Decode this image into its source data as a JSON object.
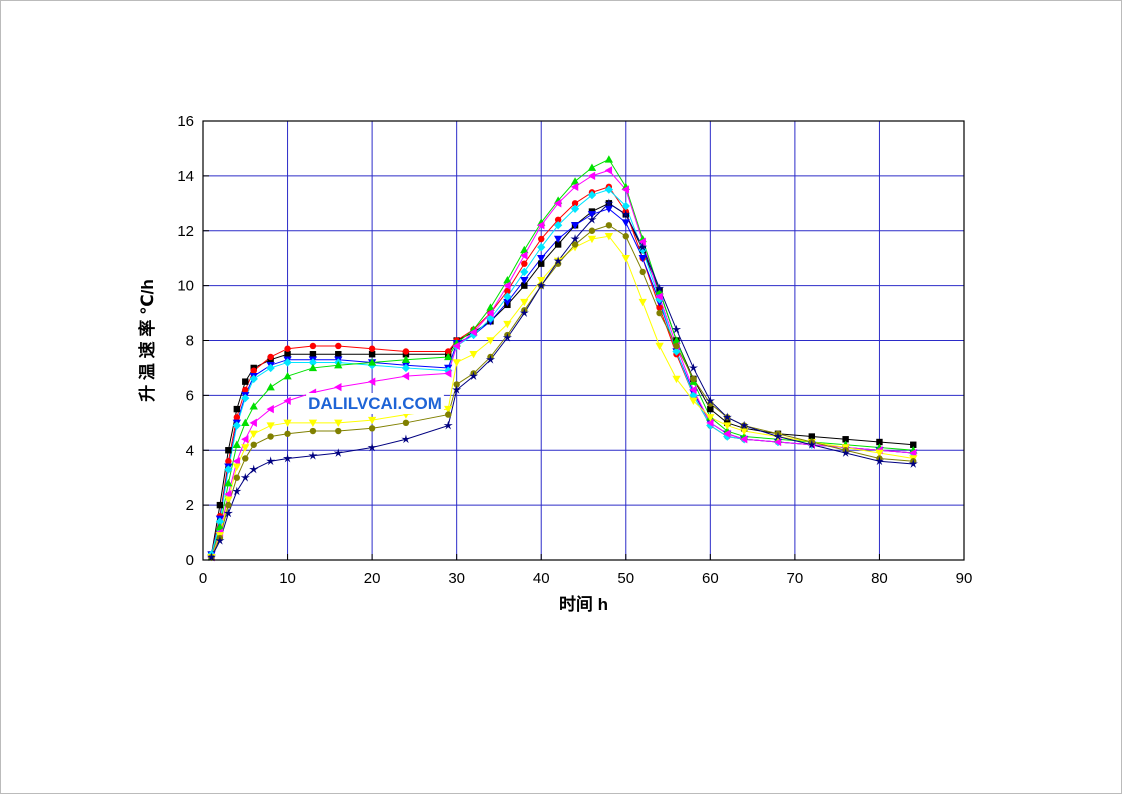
{
  "chart_data": {
    "type": "line",
    "xlabel": "时间  h",
    "ylabel": "升 温 速 率   ℃/h",
    "annotation": "DALILVCAI.COM",
    "xlim": [
      0,
      90
    ],
    "xticks": [
      0,
      10,
      20,
      30,
      40,
      50,
      60,
      70,
      80,
      90
    ],
    "ylim": [
      0,
      16
    ],
    "yticks": [
      0,
      2,
      4,
      6,
      8,
      10,
      12,
      14,
      16
    ],
    "grid": true,
    "grid_color": "#2b2bc8",
    "x": [
      1,
      2,
      3,
      4,
      5,
      6,
      8,
      10,
      13,
      16,
      20,
      24,
      29,
      30,
      32,
      34,
      36,
      38,
      40,
      42,
      44,
      46,
      48,
      50,
      52,
      54,
      56,
      58,
      60,
      62,
      64,
      68,
      72,
      76,
      80,
      84
    ],
    "series": [
      {
        "color": "#000000",
        "marker": "square",
        "values": [
          0.2,
          2,
          4,
          5.5,
          6.5,
          7,
          7.3,
          7.5,
          7.5,
          7.5,
          7.5,
          7.5,
          7.5,
          8.0,
          8.3,
          8.7,
          9.3,
          10,
          10.8,
          11.5,
          12.2,
          12.7,
          13.0,
          12.6,
          11.3,
          9.8,
          8.0,
          6.6,
          5.5,
          5.0,
          4.8,
          4.6,
          4.5,
          4.4,
          4.3,
          4.2
        ]
      },
      {
        "color": "#ff0000",
        "marker": "circle",
        "values": [
          0.2,
          1.6,
          3.6,
          5.2,
          6.2,
          6.9,
          7.4,
          7.7,
          7.8,
          7.8,
          7.7,
          7.6,
          7.6,
          8.0,
          8.4,
          9.0,
          9.8,
          10.8,
          11.7,
          12.4,
          13.0,
          13.4,
          13.6,
          12.7,
          11.0,
          9.2,
          7.5,
          6.0,
          4.9,
          4.5,
          4.4,
          4.3,
          4.2,
          4.1,
          4.0,
          3.9
        ]
      },
      {
        "color": "#0000ff",
        "marker": "triangle-down",
        "values": [
          0.2,
          1.5,
          3.4,
          5.0,
          6.0,
          6.7,
          7.1,
          7.3,
          7.3,
          7.3,
          7.2,
          7.1,
          7.0,
          7.9,
          8.2,
          8.7,
          9.4,
          10.2,
          11.0,
          11.7,
          12.2,
          12.6,
          12.8,
          12.3,
          11.0,
          9.4,
          7.6,
          6.1,
          5.0,
          4.6,
          4.4,
          4.3,
          4.2,
          4.1,
          4.0,
          3.9
        ]
      },
      {
        "color": "#00e5ff",
        "marker": "diamond",
        "values": [
          0.2,
          1.4,
          3.3,
          4.9,
          5.9,
          6.6,
          7.0,
          7.2,
          7.2,
          7.2,
          7.1,
          7.0,
          6.9,
          7.8,
          8.2,
          8.8,
          9.6,
          10.5,
          11.4,
          12.2,
          12.8,
          13.3,
          13.5,
          12.9,
          11.3,
          9.5,
          7.6,
          6.0,
          4.9,
          4.5,
          4.4,
          4.3,
          4.2,
          4.1,
          4.0,
          3.9
        ]
      },
      {
        "color": "#00e000",
        "marker": "triangle-up",
        "values": [
          0.1,
          1.2,
          2.8,
          4.2,
          5.0,
          5.6,
          6.3,
          6.7,
          7.0,
          7.1,
          7.2,
          7.3,
          7.4,
          7.9,
          8.4,
          9.2,
          10.2,
          11.3,
          12.3,
          13.1,
          13.8,
          14.3,
          14.6,
          13.6,
          11.7,
          9.8,
          8.0,
          6.5,
          5.2,
          4.7,
          4.5,
          4.4,
          4.3,
          4.2,
          4.1,
          4.0
        ]
      },
      {
        "color": "#ff00ff",
        "marker": "triangle-left",
        "values": [
          0.1,
          1.0,
          2.4,
          3.6,
          4.4,
          5.0,
          5.5,
          5.8,
          6.1,
          6.3,
          6.5,
          6.7,
          6.8,
          7.8,
          8.3,
          9.0,
          10.0,
          11.1,
          12.2,
          13.0,
          13.6,
          14.0,
          14.2,
          13.5,
          11.6,
          9.6,
          7.8,
          6.2,
          5.0,
          4.6,
          4.4,
          4.3,
          4.2,
          4.1,
          4.0,
          3.9
        ]
      },
      {
        "color": "#ffff00",
        "marker": "triangle-down",
        "values": [
          0.1,
          0.9,
          2.2,
          3.4,
          4.1,
          4.6,
          4.9,
          5.0,
          5.0,
          5.0,
          5.1,
          5.3,
          5.5,
          7.2,
          7.5,
          8.0,
          8.6,
          9.4,
          10.2,
          10.9,
          11.4,
          11.7,
          11.8,
          11.0,
          9.4,
          7.8,
          6.6,
          5.8,
          5.2,
          4.9,
          4.7,
          4.5,
          4.3,
          4.1,
          3.9,
          3.7
        ]
      },
      {
        "color": "#808000",
        "marker": "circle",
        "values": [
          0.1,
          0.8,
          2.0,
          3.0,
          3.7,
          4.2,
          4.5,
          4.6,
          4.7,
          4.7,
          4.8,
          5.0,
          5.3,
          6.4,
          6.8,
          7.4,
          8.2,
          9.1,
          10.0,
          10.8,
          11.5,
          12.0,
          12.2,
          11.8,
          10.5,
          9.0,
          7.8,
          6.6,
          5.7,
          5.2,
          4.9,
          4.6,
          4.3,
          4.0,
          3.7,
          3.6
        ]
      },
      {
        "color": "#000080",
        "marker": "star",
        "values": [
          0.1,
          0.7,
          1.7,
          2.5,
          3.0,
          3.3,
          3.6,
          3.7,
          3.8,
          3.9,
          4.1,
          4.4,
          4.9,
          6.2,
          6.7,
          7.3,
          8.1,
          9.0,
          10.0,
          10.9,
          11.7,
          12.4,
          13.0,
          12.6,
          11.4,
          9.9,
          8.4,
          7.0,
          5.8,
          5.2,
          4.9,
          4.5,
          4.2,
          3.9,
          3.6,
          3.5
        ]
      }
    ]
  }
}
